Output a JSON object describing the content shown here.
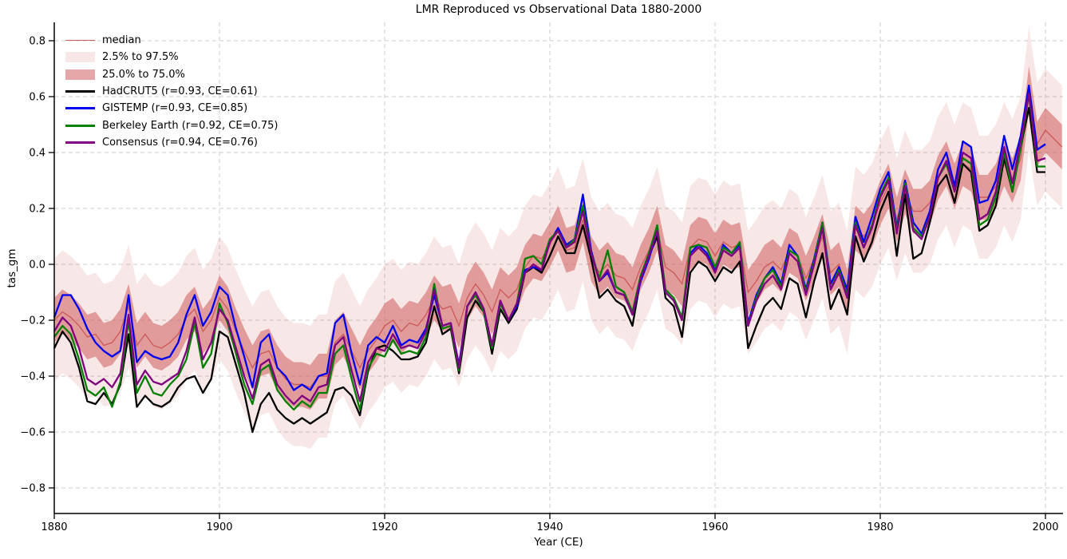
{
  "chart_data": {
    "type": "line",
    "title": "LMR Reproduced vs Observational Data 1880-2000",
    "xlabel": "Year (CE)",
    "ylabel": "tas_gm",
    "xlim": [
      1880,
      2002.1
    ],
    "ylim": [
      -0.89,
      0.866
    ],
    "grid": true,
    "legend_position": "upper left",
    "xticks": [
      {
        "label": "1880",
        "value": 1880
      },
      {
        "label": "1900",
        "value": 1900
      },
      {
        "label": "1920",
        "value": 1920
      },
      {
        "label": "1940",
        "value": 1940
      },
      {
        "label": "1960",
        "value": 1960
      },
      {
        "label": "1980",
        "value": 1980
      },
      {
        "label": "2000",
        "value": 2000
      }
    ],
    "yticks": [
      {
        "label": "0.8",
        "value": 0.8
      },
      {
        "label": "0.6",
        "value": 0.6
      },
      {
        "label": "0.4",
        "value": 0.4
      },
      {
        "label": "0.2",
        "value": 0.2
      },
      {
        "label": "0.0",
        "value": 0.0
      },
      {
        "label": "−0.2",
        "value": -0.2
      },
      {
        "label": "−0.4",
        "value": -0.4
      },
      {
        "label": "−0.6",
        "value": -0.6
      },
      {
        "label": "−0.8",
        "value": -0.8
      }
    ],
    "years": [
      1880,
      1881,
      1882,
      1883,
      1884,
      1885,
      1886,
      1887,
      1888,
      1889,
      1890,
      1891,
      1892,
      1893,
      1894,
      1895,
      1896,
      1897,
      1898,
      1899,
      1900,
      1901,
      1902,
      1903,
      1904,
      1905,
      1906,
      1907,
      1908,
      1909,
      1910,
      1911,
      1912,
      1913,
      1914,
      1915,
      1916,
      1917,
      1918,
      1919,
      1920,
      1921,
      1922,
      1923,
      1924,
      1925,
      1926,
      1927,
      1928,
      1929,
      1930,
      1931,
      1932,
      1933,
      1934,
      1935,
      1936,
      1937,
      1938,
      1939,
      1940,
      1941,
      1942,
      1943,
      1944,
      1945,
      1946,
      1947,
      1948,
      1949,
      1950,
      1951,
      1952,
      1953,
      1954,
      1955,
      1956,
      1957,
      1958,
      1959,
      1960,
      1961,
      1962,
      1963,
      1964,
      1965,
      1966,
      1967,
      1968,
      1969,
      1970,
      1971,
      1972,
      1973,
      1974,
      1975,
      1976,
      1977,
      1978,
      1979,
      1980,
      1981,
      1982,
      1983,
      1984,
      1985,
      1986,
      1987,
      1988,
      1989,
      1990,
      1991,
      1992,
      1993,
      1994,
      1995,
      1996,
      1997,
      1998,
      1999,
      2000,
      2001,
      2002
    ],
    "lmr": {
      "median_label": "median",
      "outer_label": "2.5% to 97.5%",
      "inner_label": "25.0% to 75.0%",
      "colors": {
        "median": "#cd5c5c",
        "inner_band": "rgba(205,92,92,0.55)",
        "outer_band": "rgba(205,92,92,0.15)"
      },
      "quantile_offsets": {
        "q025": -0.22,
        "q25": -0.08,
        "q75": 0.08,
        "q975": 0.22
      },
      "median": [
        -0.2,
        -0.17,
        -0.19,
        -0.22,
        -0.26,
        -0.25,
        -0.29,
        -0.28,
        -0.24,
        -0.15,
        -0.29,
        -0.25,
        -0.29,
        -0.3,
        -0.28,
        -0.25,
        -0.19,
        -0.16,
        -0.24,
        -0.2,
        -0.12,
        -0.16,
        -0.24,
        -0.31,
        -0.37,
        -0.32,
        -0.31,
        -0.37,
        -0.41,
        -0.43,
        -0.43,
        -0.44,
        -0.4,
        -0.4,
        -0.28,
        -0.25,
        -0.31,
        -0.37,
        -0.31,
        -0.27,
        -0.22,
        -0.2,
        -0.24,
        -0.21,
        -0.22,
        -0.18,
        -0.12,
        -0.16,
        -0.15,
        -0.22,
        -0.12,
        -0.07,
        -0.11,
        -0.17,
        -0.09,
        -0.12,
        -0.09,
        -0.01,
        0.03,
        0.02,
        0.07,
        0.13,
        0.05,
        0.06,
        0.16,
        0.02,
        -0.03,
        0.0,
        -0.04,
        -0.05,
        -0.09,
        -0.01,
        0.05,
        0.13,
        -0.01,
        -0.03,
        -0.07,
        0.06,
        0.09,
        0.08,
        0.03,
        0.08,
        0.06,
        0.07,
        -0.1,
        -0.06,
        -0.01,
        0.01,
        -0.02,
        0.05,
        0.03,
        -0.05,
        0.02,
        0.1,
        -0.03,
        0.0,
        -0.1,
        0.13,
        0.1,
        0.14,
        0.22,
        0.28,
        0.16,
        0.26,
        0.19,
        0.19,
        0.22,
        0.31,
        0.36,
        0.28,
        0.36,
        0.34,
        0.24,
        0.24,
        0.28,
        0.36,
        0.3,
        0.38,
        0.63,
        0.43,
        0.48,
        0.45,
        0.42
      ]
    },
    "observations": [
      {
        "id": "hadcrut5",
        "name": "HadCRUT5 (r=0.93, CE=0.61)",
        "color": "#000000",
        "values": [
          -0.3,
          -0.24,
          -0.28,
          -0.37,
          -0.49,
          -0.5,
          -0.46,
          -0.5,
          -0.43,
          -0.25,
          -0.51,
          -0.47,
          -0.5,
          -0.51,
          -0.49,
          -0.44,
          -0.41,
          -0.4,
          -0.46,
          -0.41,
          -0.24,
          -0.26,
          -0.36,
          -0.46,
          -0.6,
          -0.5,
          -0.46,
          -0.52,
          -0.55,
          -0.57,
          -0.55,
          -0.57,
          -0.55,
          -0.53,
          -0.45,
          -0.44,
          -0.47,
          -0.54,
          -0.38,
          -0.3,
          -0.29,
          -0.31,
          -0.34,
          -0.34,
          -0.33,
          -0.28,
          -0.15,
          -0.25,
          -0.23,
          -0.39,
          -0.19,
          -0.13,
          -0.17,
          -0.32,
          -0.16,
          -0.21,
          -0.16,
          -0.03,
          -0.01,
          -0.03,
          0.03,
          0.1,
          0.04,
          0.04,
          0.14,
          0.02,
          -0.12,
          -0.09,
          -0.13,
          -0.15,
          -0.22,
          -0.05,
          0.03,
          0.1,
          -0.12,
          -0.15,
          -0.26,
          -0.03,
          0.01,
          -0.01,
          -0.06,
          -0.01,
          -0.03,
          0.01,
          -0.3,
          -0.22,
          -0.15,
          -0.12,
          -0.16,
          -0.05,
          -0.07,
          -0.19,
          -0.06,
          0.04,
          -0.16,
          -0.09,
          -0.18,
          0.1,
          0.01,
          0.08,
          0.19,
          0.26,
          0.03,
          0.25,
          0.02,
          0.04,
          0.15,
          0.28,
          0.32,
          0.22,
          0.36,
          0.33,
          0.12,
          0.14,
          0.21,
          0.38,
          0.26,
          0.42,
          0.56,
          0.33,
          0.33
        ]
      },
      {
        "id": "gistemp",
        "name": "GISTEMP (r=0.93, CE=0.85)",
        "color": "#0000ee",
        "values": [
          -0.19,
          -0.11,
          -0.11,
          -0.16,
          -0.23,
          -0.28,
          -0.31,
          -0.33,
          -0.31,
          -0.11,
          -0.35,
          -0.31,
          -0.33,
          -0.34,
          -0.33,
          -0.28,
          -0.18,
          -0.11,
          -0.22,
          -0.17,
          -0.08,
          -0.11,
          -0.23,
          -0.33,
          -0.44,
          -0.28,
          -0.25,
          -0.37,
          -0.4,
          -0.45,
          -0.43,
          -0.45,
          -0.4,
          -0.39,
          -0.21,
          -0.18,
          -0.32,
          -0.43,
          -0.29,
          -0.26,
          -0.28,
          -0.22,
          -0.29,
          -0.27,
          -0.28,
          -0.23,
          -0.11,
          -0.22,
          -0.21,
          -0.36,
          -0.15,
          -0.1,
          -0.16,
          -0.29,
          -0.13,
          -0.2,
          -0.15,
          -0.02,
          -0.01,
          -0.02,
          0.08,
          0.13,
          0.07,
          0.09,
          0.25,
          0.05,
          -0.06,
          -0.03,
          -0.1,
          -0.11,
          -0.18,
          -0.06,
          0.02,
          0.12,
          -0.1,
          -0.13,
          -0.19,
          0.04,
          0.07,
          0.04,
          -0.02,
          0.07,
          0.04,
          0.07,
          -0.21,
          -0.11,
          -0.05,
          -0.01,
          -0.07,
          0.07,
          0.03,
          -0.09,
          0.02,
          0.15,
          -0.07,
          -0.01,
          -0.09,
          0.17,
          0.08,
          0.17,
          0.27,
          0.33,
          0.13,
          0.3,
          0.15,
          0.11,
          0.19,
          0.34,
          0.4,
          0.28,
          0.44,
          0.42,
          0.22,
          0.23,
          0.3,
          0.46,
          0.34,
          0.46,
          0.64,
          0.41,
          0.43
        ]
      },
      {
        "id": "berkeley",
        "name": "Berkeley Earth (r=0.92, CE=0.75)",
        "color": "#008000",
        "values": [
          -0.26,
          -0.22,
          -0.25,
          -0.34,
          -0.45,
          -0.47,
          -0.44,
          -0.51,
          -0.42,
          -0.2,
          -0.46,
          -0.4,
          -0.46,
          -0.47,
          -0.43,
          -0.4,
          -0.34,
          -0.21,
          -0.37,
          -0.32,
          -0.14,
          -0.21,
          -0.32,
          -0.43,
          -0.5,
          -0.38,
          -0.36,
          -0.45,
          -0.49,
          -0.52,
          -0.49,
          -0.51,
          -0.46,
          -0.46,
          -0.32,
          -0.29,
          -0.41,
          -0.52,
          -0.37,
          -0.32,
          -0.33,
          -0.27,
          -0.32,
          -0.31,
          -0.32,
          -0.26,
          -0.07,
          -0.23,
          -0.22,
          -0.38,
          -0.15,
          -0.11,
          -0.17,
          -0.3,
          -0.14,
          -0.2,
          -0.14,
          0.02,
          0.03,
          0.0,
          0.09,
          0.12,
          0.06,
          0.09,
          0.21,
          0.04,
          -0.05,
          0.05,
          -0.08,
          -0.1,
          -0.17,
          -0.04,
          0.04,
          0.14,
          -0.09,
          -0.12,
          -0.19,
          0.06,
          0.07,
          0.06,
          -0.01,
          0.06,
          0.04,
          0.08,
          -0.22,
          -0.12,
          -0.05,
          -0.02,
          -0.08,
          0.05,
          0.03,
          -0.1,
          0.01,
          0.15,
          -0.09,
          -0.02,
          -0.11,
          0.15,
          0.06,
          0.14,
          0.25,
          0.31,
          0.12,
          0.29,
          0.13,
          0.1,
          0.17,
          0.31,
          0.36,
          0.26,
          0.38,
          0.36,
          0.14,
          0.16,
          0.24,
          0.4,
          0.26,
          0.42,
          0.61,
          0.35,
          0.35
        ]
      },
      {
        "id": "consensus",
        "name": "Consensus (r=0.94, CE=0.76)",
        "color": "#800080",
        "values": [
          -0.24,
          -0.19,
          -0.22,
          -0.3,
          -0.41,
          -0.43,
          -0.41,
          -0.44,
          -0.39,
          -0.18,
          -0.43,
          -0.38,
          -0.42,
          -0.43,
          -0.41,
          -0.39,
          -0.31,
          -0.19,
          -0.34,
          -0.28,
          -0.16,
          -0.2,
          -0.3,
          -0.4,
          -0.48,
          -0.36,
          -0.34,
          -0.43,
          -0.47,
          -0.5,
          -0.47,
          -0.49,
          -0.44,
          -0.43,
          -0.29,
          -0.26,
          -0.38,
          -0.49,
          -0.35,
          -0.3,
          -0.31,
          -0.25,
          -0.3,
          -0.29,
          -0.3,
          -0.24,
          -0.09,
          -0.22,
          -0.21,
          -0.37,
          -0.15,
          -0.1,
          -0.16,
          -0.29,
          -0.13,
          -0.2,
          -0.14,
          -0.03,
          0.0,
          -0.02,
          0.08,
          0.12,
          0.06,
          0.08,
          0.19,
          0.04,
          -0.06,
          -0.02,
          -0.1,
          -0.11,
          -0.18,
          -0.05,
          0.03,
          0.12,
          -0.1,
          -0.13,
          -0.2,
          0.03,
          0.06,
          0.03,
          -0.03,
          0.05,
          0.03,
          0.06,
          -0.22,
          -0.13,
          -0.07,
          -0.04,
          -0.09,
          0.04,
          0.01,
          -0.11,
          0.0,
          0.13,
          -0.09,
          -0.03,
          -0.12,
          0.14,
          0.06,
          0.13,
          0.24,
          0.3,
          0.11,
          0.28,
          0.12,
          0.09,
          0.17,
          0.31,
          0.37,
          0.26,
          0.4,
          0.38,
          0.16,
          0.18,
          0.26,
          0.42,
          0.29,
          0.44,
          0.61,
          0.37,
          0.38
        ]
      }
    ],
    "style": {
      "grid_color": "#cccccc",
      "spine_color": "#000000",
      "obs_line_width": 2.3,
      "median_line_width": 1.4
    }
  }
}
